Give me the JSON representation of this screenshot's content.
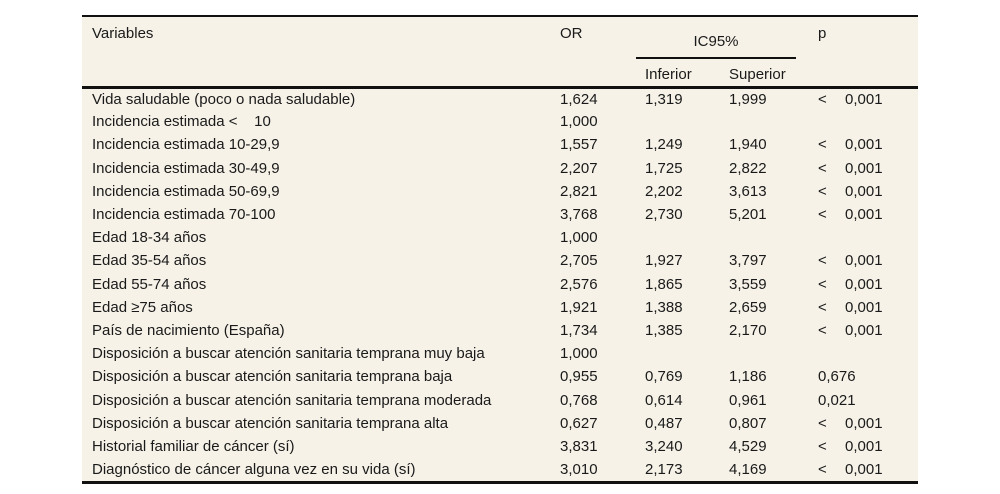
{
  "colors": {
    "page_background": "#ffffff",
    "table_background": "#f6f2e8",
    "rule_color": "#111111",
    "text_color": "#1a1a1a"
  },
  "table": {
    "header": {
      "variables": "Variables",
      "or": "OR",
      "ic95": "IC95%",
      "inferior": "Inferior",
      "superior": "Superior",
      "p": "p"
    },
    "rows": [
      {
        "label": "Vida saludable (poco o nada saludable)",
        "or": "1,624",
        "inferior": "1,319",
        "superior": "1,999",
        "p_sign": "<",
        "p_value": "0,001"
      },
      {
        "label": "Incidencia estimada <    10",
        "or": "1,000",
        "inferior": "",
        "superior": "",
        "p_sign": "",
        "p_value": ""
      },
      {
        "label": "Incidencia estimada 10-29,9",
        "or": "1,557",
        "inferior": "1,249",
        "superior": "1,940",
        "p_sign": "<",
        "p_value": "0,001"
      },
      {
        "label": "Incidencia estimada 30-49,9",
        "or": "2,207",
        "inferior": "1,725",
        "superior": "2,822",
        "p_sign": "<",
        "p_value": "0,001"
      },
      {
        "label": "Incidencia estimada 50-69,9",
        "or": "2,821",
        "inferior": "2,202",
        "superior": "3,613",
        "p_sign": "<",
        "p_value": "0,001"
      },
      {
        "label": "Incidencia estimada 70-100",
        "or": "3,768",
        "inferior": "2,730",
        "superior": "5,201",
        "p_sign": "<",
        "p_value": "0,001"
      },
      {
        "label": "Edad 18-34 años",
        "or": "1,000",
        "inferior": "",
        "superior": "",
        "p_sign": "",
        "p_value": ""
      },
      {
        "label": "Edad 35-54 años",
        "or": "2,705",
        "inferior": "1,927",
        "superior": "3,797",
        "p_sign": "<",
        "p_value": "0,001"
      },
      {
        "label": "Edad 55-74 años",
        "or": "2,576",
        "inferior": "1,865",
        "superior": "3,559",
        "p_sign": "<",
        "p_value": "0,001"
      },
      {
        "label": "Edad ≥75 años",
        "or": "1,921",
        "inferior": "1,388",
        "superior": "2,659",
        "p_sign": "<",
        "p_value": "0,001"
      },
      {
        "label": "País de nacimiento (España)",
        "or": "1,734",
        "inferior": "1,385",
        "superior": "2,170",
        "p_sign": "<",
        "p_value": "0,001"
      },
      {
        "label": "Disposición a buscar atención sanitaria temprana muy baja",
        "or": "1,000",
        "inferior": "",
        "superior": "",
        "p_sign": "",
        "p_value": ""
      },
      {
        "label": "Disposición a buscar atención sanitaria temprana baja",
        "or": "0,955",
        "inferior": "0,769",
        "superior": "1,186",
        "p_sign": "",
        "p_value": "0,676"
      },
      {
        "label": "Disposición a buscar atención sanitaria temprana moderada",
        "or": "0,768",
        "inferior": "0,614",
        "superior": "0,961",
        "p_sign": "",
        "p_value": "0,021"
      },
      {
        "label": "Disposición a buscar atención sanitaria temprana alta",
        "or": "0,627",
        "inferior": "0,487",
        "superior": "0,807",
        "p_sign": "<",
        "p_value": "0,001"
      },
      {
        "label": "Historial familiar de cáncer (sí)",
        "or": "3,831",
        "inferior": "3,240",
        "superior": "4,529",
        "p_sign": "<",
        "p_value": "0,001"
      },
      {
        "label": "Diagnóstico de cáncer alguna vez en su vida (sí)",
        "or": "3,010",
        "inferior": "2,173",
        "superior": "4,169",
        "p_sign": "<",
        "p_value": "0,001"
      }
    ]
  }
}
